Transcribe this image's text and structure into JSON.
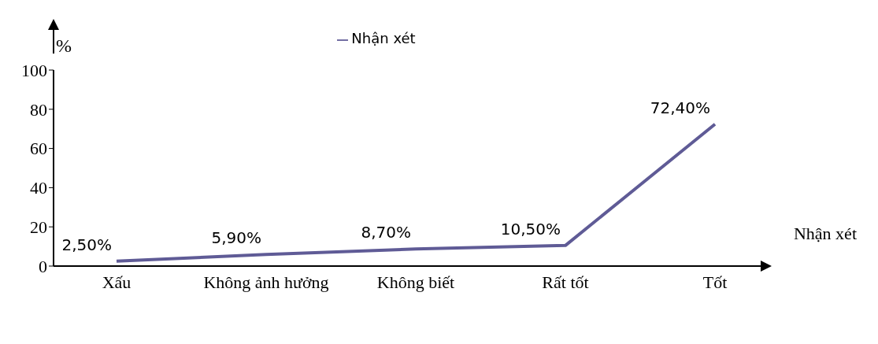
{
  "chart_data": {
    "type": "line",
    "ylabel": "%",
    "xlabel": "Nhận xét",
    "categories": [
      "Xấu",
      "Không ảnh hưởng",
      "Không biết",
      "Rất tốt",
      "Tốt"
    ],
    "series": [
      {
        "name": "Nhận xét",
        "color": "#5f5b96",
        "values": [
          2.5,
          5.9,
          8.7,
          10.5,
          72.4
        ],
        "value_labels": [
          "2,50%",
          "5,90%",
          "8,70%",
          "10,50%",
          "72,40%"
        ]
      }
    ],
    "ylim": [
      0,
      100
    ],
    "yticks": [
      0,
      20,
      40,
      60,
      80,
      100
    ],
    "grid": false,
    "legend": "top",
    "marker": "none",
    "line_style": "solid"
  }
}
